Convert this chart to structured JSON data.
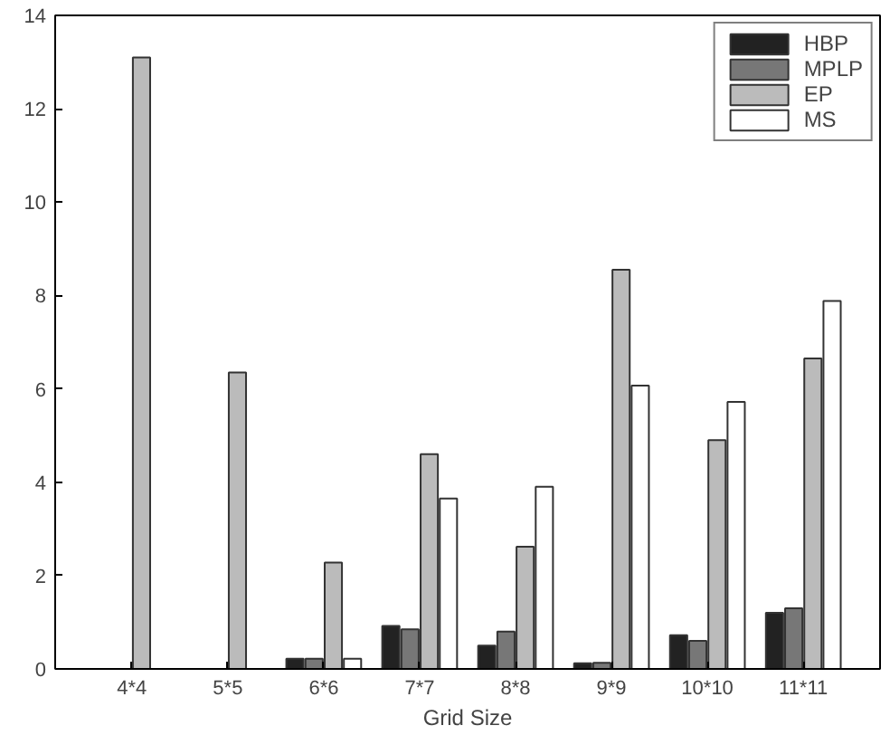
{
  "chart_data": {
    "type": "bar",
    "xlabel": "Grid Size",
    "categories": [
      "4*4",
      "5*5",
      "6*6",
      "7*7",
      "8*8",
      "9*9",
      "10*10",
      "11*11"
    ],
    "series": [
      {
        "name": "HBP",
        "color": "#222222",
        "values": [
          0,
          0,
          0.22,
          0.92,
          0.5,
          0.12,
          0.72,
          1.2
        ]
      },
      {
        "name": "MPLP",
        "color": "#777777",
        "values": [
          0,
          0,
          0.22,
          0.85,
          0.8,
          0.13,
          0.6,
          1.3
        ]
      },
      {
        "name": "EP",
        "color": "#bbbbbb",
        "values": [
          13.1,
          6.35,
          2.28,
          4.6,
          2.62,
          8.55,
          4.9,
          6.65
        ]
      },
      {
        "name": "MS",
        "color": "#ffffff",
        "values": [
          0,
          0,
          0.22,
          3.65,
          3.9,
          6.07,
          5.72,
          7.88
        ]
      }
    ],
    "ylim": [
      0,
      14
    ],
    "yticks": [
      0,
      2,
      4,
      6,
      8,
      10,
      12,
      14
    ],
    "grid": false,
    "legend": "top right"
  }
}
